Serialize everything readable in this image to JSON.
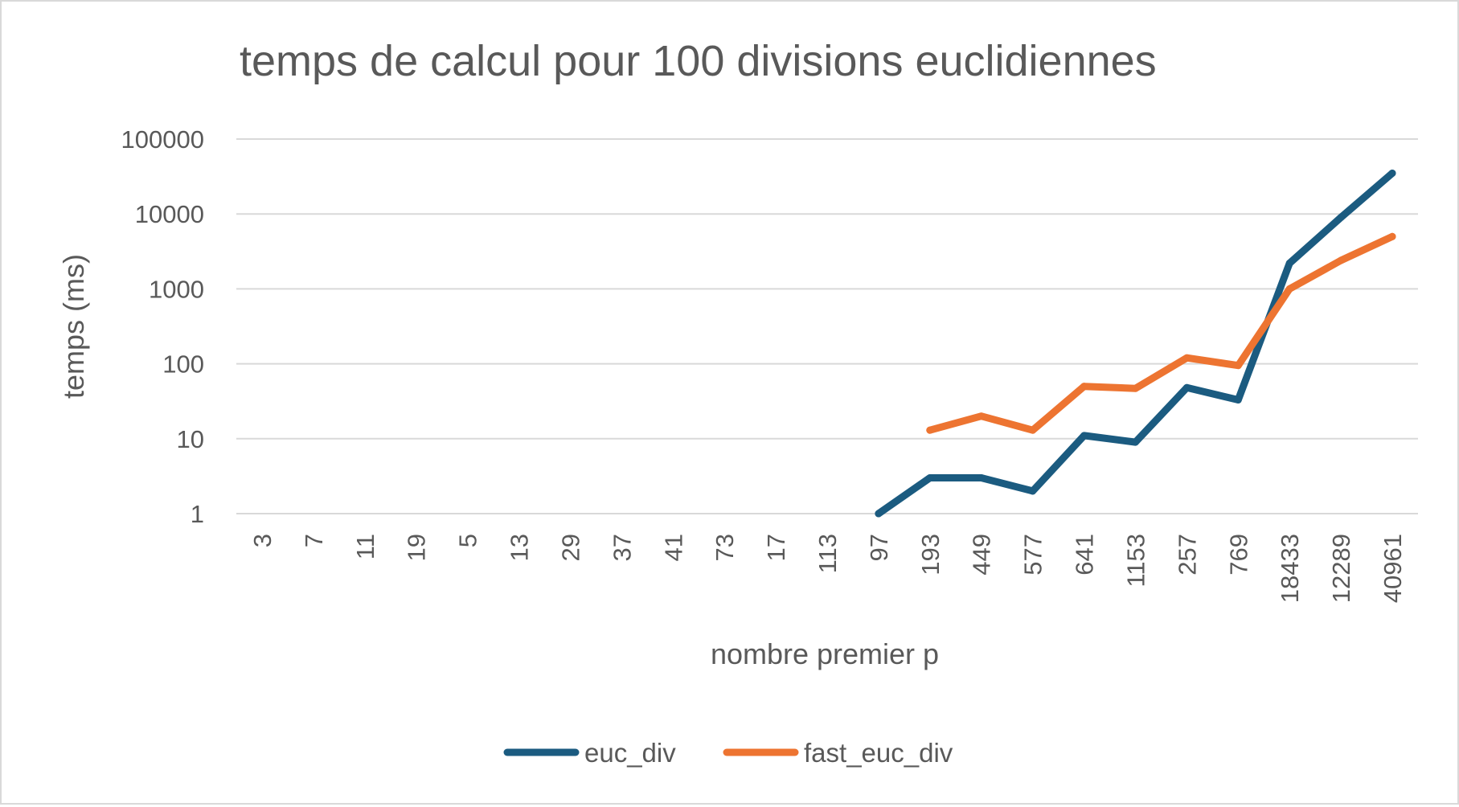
{
  "chart_data": {
    "type": "line",
    "title": "temps de calcul pour 100 divisions euclidiennes",
    "xlabel": "nombre premier p",
    "ylabel": "temps (ms)",
    "y_scale": "log",
    "ylim": [
      1,
      100000
    ],
    "y_ticks": [
      "1",
      "10",
      "100",
      "1000",
      "10000",
      "100000"
    ],
    "categories": [
      "3",
      "7",
      "11",
      "19",
      "5",
      "13",
      "29",
      "37",
      "41",
      "73",
      "17",
      "113",
      "97",
      "193",
      "449",
      "577",
      "641",
      "1153",
      "257",
      "769",
      "18433",
      "12289",
      "40961"
    ],
    "series": [
      {
        "name": "euc_div",
        "color": "#1b5b80",
        "values": [
          null,
          null,
          null,
          null,
          null,
          null,
          null,
          null,
          null,
          null,
          null,
          null,
          1,
          3,
          3,
          2,
          11,
          9,
          48,
          33,
          2200,
          9000,
          35000
        ]
      },
      {
        "name": "fast_euc_div",
        "color": "#ed7431",
        "values": [
          null,
          null,
          null,
          null,
          null,
          null,
          null,
          null,
          null,
          null,
          null,
          null,
          null,
          13,
          20,
          13,
          50,
          47,
          120,
          95,
          1000,
          2400,
          5000
        ]
      }
    ],
    "grid": true,
    "legend_position": "bottom"
  }
}
